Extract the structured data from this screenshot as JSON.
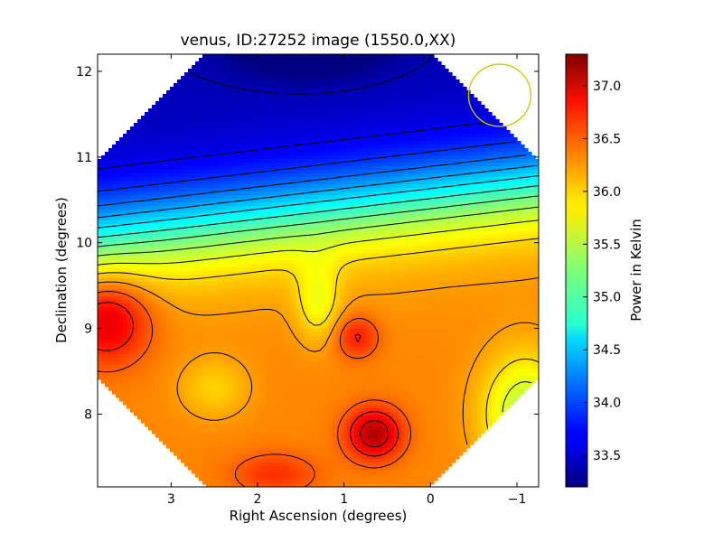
{
  "chart_data": {
    "type": "heatmap",
    "title": "venus, ID:27252 image (1550.0,XX)",
    "xlabel": "Right Ascension (degrees)",
    "ylabel": "Declination (degrees)",
    "colorbar_label": "Power in Kelvin",
    "xlim": [
      3.85,
      -1.25
    ],
    "ylim": [
      7.15,
      12.2
    ],
    "xticks": [
      3,
      2,
      1,
      0,
      -1
    ],
    "xtick_labels": [
      "3",
      "2",
      "1",
      "0",
      "−1"
    ],
    "yticks": [
      8,
      9,
      10,
      11,
      12
    ],
    "ytick_labels": [
      "8",
      "9",
      "10",
      "11",
      "12"
    ],
    "clim": [
      33.2,
      37.3
    ],
    "colorbar_ticks": [
      33.5,
      34.0,
      34.5,
      35.0,
      35.5,
      36.0,
      36.5,
      37.0
    ],
    "colorbar_tick_labels": [
      "33.5",
      "34.0",
      "34.5",
      "35.0",
      "35.5",
      "36.0",
      "36.5",
      "37.0"
    ],
    "colormap": "jet",
    "contours": true,
    "contour_color": "#000000",
    "beam_circle": {
      "ra": -0.8,
      "dec": 11.72,
      "radius_deg": 0.36,
      "color": "#c8c800"
    },
    "field_shape": "octagon",
    "field_features": [
      {
        "kind": "minimum",
        "ra": 1.4,
        "dec": 12.3,
        "value": 33.2
      },
      {
        "kind": "maximum",
        "ra": 3.75,
        "dec": 9.1,
        "value": 37.1
      },
      {
        "kind": "maximum",
        "ra": 0.65,
        "dec": 7.77,
        "value": 37.25
      },
      {
        "kind": "maximum",
        "ra": 0.85,
        "dec": 8.9,
        "value": 36.9
      },
      {
        "kind": "maximum",
        "ra": 1.8,
        "dec": 7.3,
        "value": 36.7
      },
      {
        "kind": "minimum",
        "ra": -1.1,
        "dec": 8.0,
        "value": 35.6
      }
    ]
  }
}
